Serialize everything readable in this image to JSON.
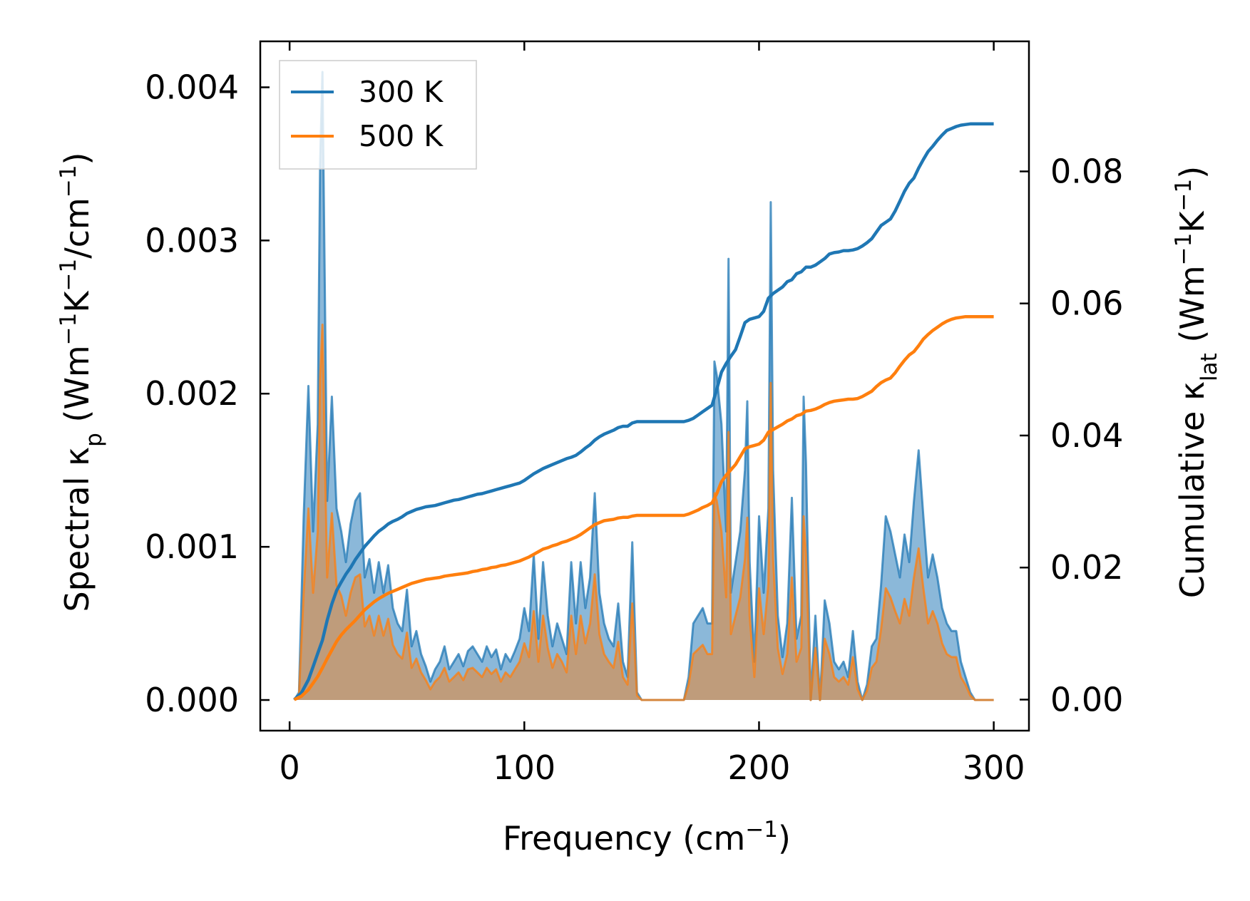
{
  "chart_data": {
    "type": "line",
    "xlabel": {
      "main": "Frequency (cm",
      "sup": "−1",
      "tail": ")"
    },
    "ylabel_left": {
      "a": "Spectral κ",
      "sub": "p",
      "b": " (Wm",
      "sup1": "−1",
      "c": "K",
      "sup2": "−1",
      "d": "/cm",
      "sup3": "−1",
      "e": ")"
    },
    "ylabel_right": {
      "a": "Cumulative κ",
      "sub": "lat",
      "b": " (Wm",
      "sup1": "−1",
      "c": "K",
      "sup2": "−1",
      "d": ")"
    },
    "xlim": [
      -12.5,
      315
    ],
    "ylim_left": [
      -0.0002,
      0.0043
    ],
    "ylim_right": [
      -0.0047,
      0.0997
    ],
    "xticks": [
      0,
      100,
      200,
      300
    ],
    "xtick_labels": [
      "0",
      "100",
      "200",
      "300"
    ],
    "yticks_left": [
      0,
      0.001,
      0.002,
      0.003,
      0.004
    ],
    "ytick_labels_left": [
      "0.000",
      "0.001",
      "0.002",
      "0.003",
      "0.004"
    ],
    "yticks_right": [
      0,
      0.02,
      0.04,
      0.06,
      0.08
    ],
    "ytick_labels_right": [
      "0.00",
      "0.02",
      "0.04",
      "0.06",
      "0.08"
    ],
    "legend_position": "top-left",
    "colors": {
      "300K": "#1f77b4",
      "500K": "#ff7f0e",
      "fill300": "#7eb0d5",
      "fill500": "#c8966a"
    },
    "spectral_x": [
      2,
      4,
      6,
      8,
      10,
      12,
      13,
      14,
      16,
      18,
      20,
      22,
      24,
      26,
      28,
      30,
      32,
      34,
      36,
      38,
      40,
      42,
      44,
      46,
      48,
      50,
      52,
      54,
      56,
      58,
      60,
      62,
      64,
      66,
      68,
      70,
      72,
      74,
      76,
      78,
      80,
      82,
      84,
      86,
      88,
      90,
      92,
      94,
      96,
      98,
      100,
      102,
      104,
      106,
      108,
      110,
      112,
      114,
      116,
      118,
      120,
      122,
      124,
      126,
      128,
      130,
      132,
      134,
      136,
      138,
      140,
      142,
      144,
      146,
      148,
      150,
      155,
      160,
      165,
      168,
      170,
      172,
      174,
      176,
      178,
      180,
      181,
      182,
      184,
      186,
      187,
      188,
      190,
      192,
      194,
      195,
      196,
      198,
      200,
      202,
      204,
      205,
      206,
      208,
      210,
      212,
      214,
      216,
      218,
      219,
      220,
      222,
      224,
      226,
      228,
      230,
      232,
      234,
      236,
      238,
      240,
      242,
      244,
      246,
      248,
      250,
      252,
      254,
      256,
      258,
      260,
      262,
      264,
      266,
      268,
      270,
      272,
      274,
      276,
      278,
      280,
      282,
      284,
      286,
      288,
      290,
      292,
      296,
      300
    ],
    "series": [
      {
        "name": "300 K",
        "spectral": [
          0,
          5e-05,
          0.0012,
          0.00205,
          0.0011,
          0.0018,
          0.0035,
          0.0041,
          0.0013,
          0.00198,
          0.00125,
          0.0011,
          0.0009,
          0.00115,
          0.0013,
          0.00135,
          0.0008,
          0.00092,
          0.0007,
          0.0009,
          0.0007,
          0.00088,
          0.0006,
          0.0005,
          0.00045,
          0.00072,
          0.00035,
          0.00045,
          0.0003,
          0.00022,
          0.00012,
          0.0002,
          0.00025,
          0.00035,
          0.0002,
          0.00025,
          0.0003,
          0.00022,
          0.00032,
          0.00035,
          0.0003,
          0.00025,
          0.00035,
          0.00028,
          0.00033,
          0.0002,
          0.0003,
          0.00025,
          0.00032,
          0.0004,
          0.0006,
          0.00045,
          0.00095,
          0.0004,
          0.0009,
          0.00055,
          0.00035,
          0.0005,
          0.0004,
          0.0003,
          0.0009,
          0.0005,
          0.0009,
          0.0006,
          0.0008,
          0.00135,
          0.0007,
          0.0005,
          0.0004,
          0.00035,
          0.00063,
          0.00025,
          0.00015,
          0.00103,
          5e-05,
          0,
          0,
          0,
          0,
          0,
          0.00015,
          0.0005,
          0.00055,
          0.0006,
          0.0005,
          0.0005,
          0.00221,
          0.00212,
          0.0018,
          0.0011,
          0.00288,
          0.0007,
          0.0009,
          0.0011,
          0.0015,
          0.00195,
          0.0009,
          0.00025,
          0.0012,
          0.0007,
          0.00125,
          0.00325,
          0.0015,
          0.00055,
          0.00028,
          0.0005,
          0.00132,
          0.0004,
          0.00055,
          0.00198,
          0.00155,
          0,
          0.00055,
          0,
          0.00065,
          0.0005,
          0.00025,
          0.0002,
          0.00025,
          0.00015,
          0.00045,
          0.00012,
          0,
          0.0001,
          0.00035,
          0.0004,
          0.00075,
          0.0012,
          0.0011,
          0.00095,
          0.0008,
          0.00108,
          0.0009,
          0.0013,
          0.00163,
          0.0012,
          0.0008,
          0.00095,
          0.0008,
          0.0006,
          0.0005,
          0.00045,
          0.00045,
          0.00025,
          0.00015,
          5e-05,
          0,
          0,
          0
        ]
      },
      {
        "name": "500 K",
        "spectral": [
          0,
          3e-05,
          0.0007,
          0.00125,
          0.0007,
          0.0011,
          0.0021,
          0.00245,
          0.0008,
          0.00122,
          0.00075,
          0.00068,
          0.00055,
          0.0007,
          0.0008,
          0.00082,
          0.00048,
          0.00055,
          0.00042,
          0.00055,
          0.00042,
          0.00053,
          0.00036,
          0.0003,
          0.00027,
          0.00044,
          0.00021,
          0.00027,
          0.00018,
          0.00013,
          7e-05,
          0.00012,
          0.00015,
          0.00021,
          0.00012,
          0.00015,
          0.00018,
          0.00013,
          0.0002,
          0.00021,
          0.00018,
          0.00015,
          0.00021,
          0.00017,
          0.0002,
          0.00012,
          0.00018,
          0.00015,
          0.0002,
          0.00025,
          0.00037,
          0.00028,
          0.00058,
          0.00025,
          0.00055,
          0.00034,
          0.00021,
          0.0003,
          0.00025,
          0.00018,
          0.00055,
          0.0003,
          0.00055,
          0.00037,
          0.0005,
          0.00082,
          0.00043,
          0.0003,
          0.00025,
          0.00021,
          0.00038,
          0.00015,
          0.0001,
          0.00063,
          3e-05,
          0,
          0,
          0,
          0,
          0,
          0.0001,
          0.0003,
          0.00033,
          0.00036,
          0.0003,
          0.0003,
          0.00135,
          0.0013,
          0.0011,
          0.00067,
          0.00175,
          0.00043,
          0.00055,
          0.00067,
          0.00092,
          0.00119,
          0.00055,
          0.00015,
          0.00073,
          0.00043,
          0.00076,
          0.00207,
          0.00092,
          0.00034,
          0.00017,
          0.0003,
          0.0008,
          0.00025,
          0.00034,
          0.0012,
          0.00095,
          0,
          0.00034,
          0,
          0.0004,
          0.0003,
          0.00015,
          0.00012,
          0.00015,
          0.0001,
          0.00028,
          7e-05,
          0,
          6e-05,
          0.00021,
          0.00025,
          0.00046,
          0.00073,
          0.00067,
          0.00058,
          0.0005,
          0.00066,
          0.00055,
          0.0008,
          0.00099,
          0.00073,
          0.0005,
          0.00058,
          0.0005,
          0.00037,
          0.0003,
          0.00028,
          0.00028,
          0.00015,
          0.0001,
          3e-05,
          0,
          0,
          0
        ]
      }
    ],
    "cumulative_x": [
      2,
      5,
      8,
      10,
      12,
      14,
      16,
      18,
      20,
      22,
      24,
      26,
      28,
      30,
      32,
      34,
      36,
      38,
      40,
      42,
      44,
      46,
      48,
      50,
      52,
      54,
      56,
      58,
      60,
      62,
      64,
      66,
      68,
      70,
      72,
      74,
      76,
      78,
      80,
      82,
      84,
      86,
      88,
      90,
      92,
      94,
      96,
      98,
      100,
      102,
      104,
      106,
      108,
      110,
      112,
      114,
      116,
      118,
      120,
      122,
      124,
      126,
      128,
      130,
      132,
      134,
      136,
      138,
      140,
      142,
      144,
      146,
      148,
      150,
      155,
      160,
      165,
      168,
      170,
      172,
      174,
      176,
      178,
      180,
      182,
      184,
      186,
      188,
      190,
      192,
      194,
      196,
      198,
      200,
      202,
      204,
      206,
      208,
      210,
      212,
      214,
      216,
      218,
      220,
      222,
      224,
      226,
      228,
      230,
      232,
      234,
      236,
      238,
      240,
      242,
      244,
      246,
      248,
      250,
      252,
      254,
      256,
      258,
      260,
      262,
      264,
      266,
      268,
      270,
      272,
      274,
      276,
      278,
      280,
      282,
      284,
      286,
      288,
      290,
      292,
      296,
      300
    ],
    "cumulative": [
      {
        "name": "300 K",
        "values": [
          0,
          0.001,
          0.003,
          0.005,
          0.007,
          0.009,
          0.012,
          0.0145,
          0.0165,
          0.0178,
          0.019,
          0.02,
          0.0212,
          0.0222,
          0.0232,
          0.024,
          0.0248,
          0.0255,
          0.026,
          0.0266,
          0.027,
          0.0273,
          0.0277,
          0.0282,
          0.0285,
          0.0288,
          0.029,
          0.0292,
          0.0293,
          0.0294,
          0.0296,
          0.0298,
          0.03,
          0.0302,
          0.0303,
          0.0305,
          0.0307,
          0.0309,
          0.0311,
          0.0312,
          0.0314,
          0.0316,
          0.0318,
          0.032,
          0.0322,
          0.0324,
          0.0326,
          0.0328,
          0.0332,
          0.0337,
          0.0342,
          0.0346,
          0.035,
          0.0353,
          0.0356,
          0.0359,
          0.0362,
          0.0365,
          0.0367,
          0.037,
          0.0375,
          0.0381,
          0.0386,
          0.0393,
          0.0398,
          0.0402,
          0.0405,
          0.0408,
          0.0412,
          0.0414,
          0.0414,
          0.0419,
          0.0421,
          0.0421,
          0.0421,
          0.0421,
          0.0421,
          0.0421,
          0.0423,
          0.0426,
          0.0431,
          0.0436,
          0.0441,
          0.0446,
          0.047,
          0.0496,
          0.0509,
          0.052,
          0.053,
          0.055,
          0.0571,
          0.0576,
          0.0578,
          0.058,
          0.0588,
          0.0608,
          0.0615,
          0.062,
          0.0625,
          0.0633,
          0.0636,
          0.0645,
          0.0648,
          0.0655,
          0.0655,
          0.0658,
          0.0663,
          0.0668,
          0.0675,
          0.0677,
          0.0678,
          0.068,
          0.068,
          0.0681,
          0.0683,
          0.0687,
          0.0692,
          0.0698,
          0.0708,
          0.0718,
          0.0723,
          0.0728,
          0.074,
          0.0755,
          0.077,
          0.0782,
          0.079,
          0.0805,
          0.0818,
          0.083,
          0.0838,
          0.0847,
          0.0855,
          0.0862,
          0.0865,
          0.0868,
          0.087,
          0.0871,
          0.0872,
          0.0872,
          0.0872,
          0.0872
        ]
      },
      {
        "name": "500 K",
        "values": [
          0,
          0.0005,
          0.0015,
          0.0025,
          0.0035,
          0.0048,
          0.0062,
          0.0075,
          0.0088,
          0.0098,
          0.0106,
          0.0113,
          0.012,
          0.0128,
          0.0136,
          0.0142,
          0.0148,
          0.0153,
          0.0157,
          0.0161,
          0.0164,
          0.0167,
          0.017,
          0.0173,
          0.0176,
          0.0178,
          0.018,
          0.0182,
          0.0183,
          0.0184,
          0.0185,
          0.0187,
          0.0188,
          0.0189,
          0.019,
          0.0191,
          0.0192,
          0.0194,
          0.0195,
          0.0197,
          0.0198,
          0.02,
          0.0201,
          0.0203,
          0.0204,
          0.0206,
          0.0208,
          0.021,
          0.0213,
          0.0216,
          0.022,
          0.0224,
          0.0228,
          0.023,
          0.0233,
          0.0235,
          0.0238,
          0.024,
          0.0243,
          0.0246,
          0.025,
          0.0255,
          0.026,
          0.0265,
          0.0268,
          0.0271,
          0.0272,
          0.0273,
          0.0275,
          0.0276,
          0.0276,
          0.0278,
          0.0279,
          0.0279,
          0.0279,
          0.0279,
          0.0279,
          0.0279,
          0.0281,
          0.0284,
          0.0287,
          0.0291,
          0.0294,
          0.0298,
          0.0312,
          0.033,
          0.034,
          0.0348,
          0.0356,
          0.0368,
          0.038,
          0.0383,
          0.0385,
          0.0387,
          0.0393,
          0.0405,
          0.0409,
          0.0413,
          0.0417,
          0.0422,
          0.0425,
          0.043,
          0.0432,
          0.0437,
          0.0438,
          0.044,
          0.0443,
          0.0447,
          0.045,
          0.0452,
          0.0453,
          0.0454,
          0.0455,
          0.0455,
          0.0456,
          0.0459,
          0.0463,
          0.0467,
          0.0474,
          0.048,
          0.0484,
          0.0487,
          0.0495,
          0.0505,
          0.0514,
          0.0522,
          0.0527,
          0.0536,
          0.0546,
          0.0553,
          0.0559,
          0.0564,
          0.0569,
          0.0573,
          0.0576,
          0.0578,
          0.0579,
          0.058,
          0.058,
          0.058,
          0.058,
          0.058
        ]
      }
    ]
  }
}
